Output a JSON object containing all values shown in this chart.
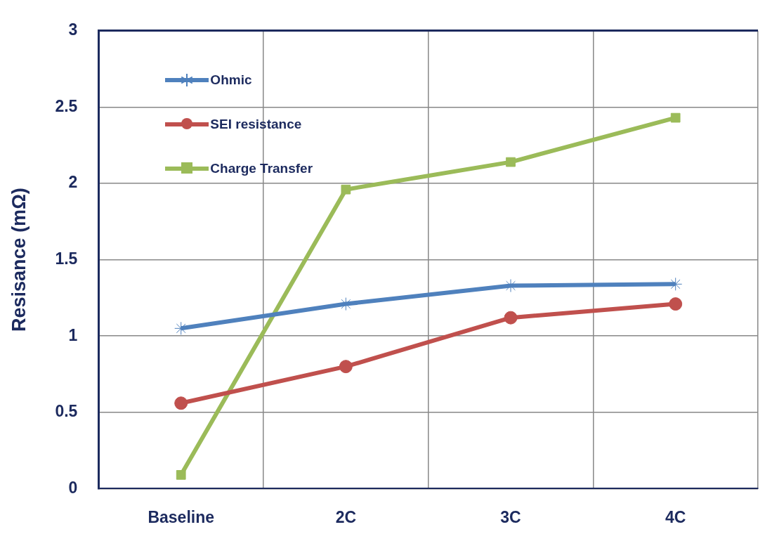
{
  "chart_data": {
    "type": "line",
    "ylabel": "Resisance (mΩ)",
    "categories": [
      "Baseline",
      "2C",
      "3C",
      "4C"
    ],
    "series": [
      {
        "name": "Ohmic",
        "color": "#4f81bd",
        "marker": "cross",
        "values": [
          1.05,
          1.21,
          1.33,
          1.34
        ]
      },
      {
        "name": "SEI resistance",
        "color": "#c0504d",
        "marker": "circle",
        "values": [
          0.56,
          0.8,
          1.12,
          1.21
        ]
      },
      {
        "name": "Charge Transfer",
        "color": "#9bbb59",
        "marker": "square",
        "values": [
          0.09,
          1.96,
          2.14,
          2.43
        ]
      }
    ],
    "ylim": [
      0,
      3
    ],
    "yticks": [
      0,
      0.5,
      1,
      1.5,
      2,
      2.5,
      3
    ],
    "grid": true,
    "legend": "top left"
  }
}
